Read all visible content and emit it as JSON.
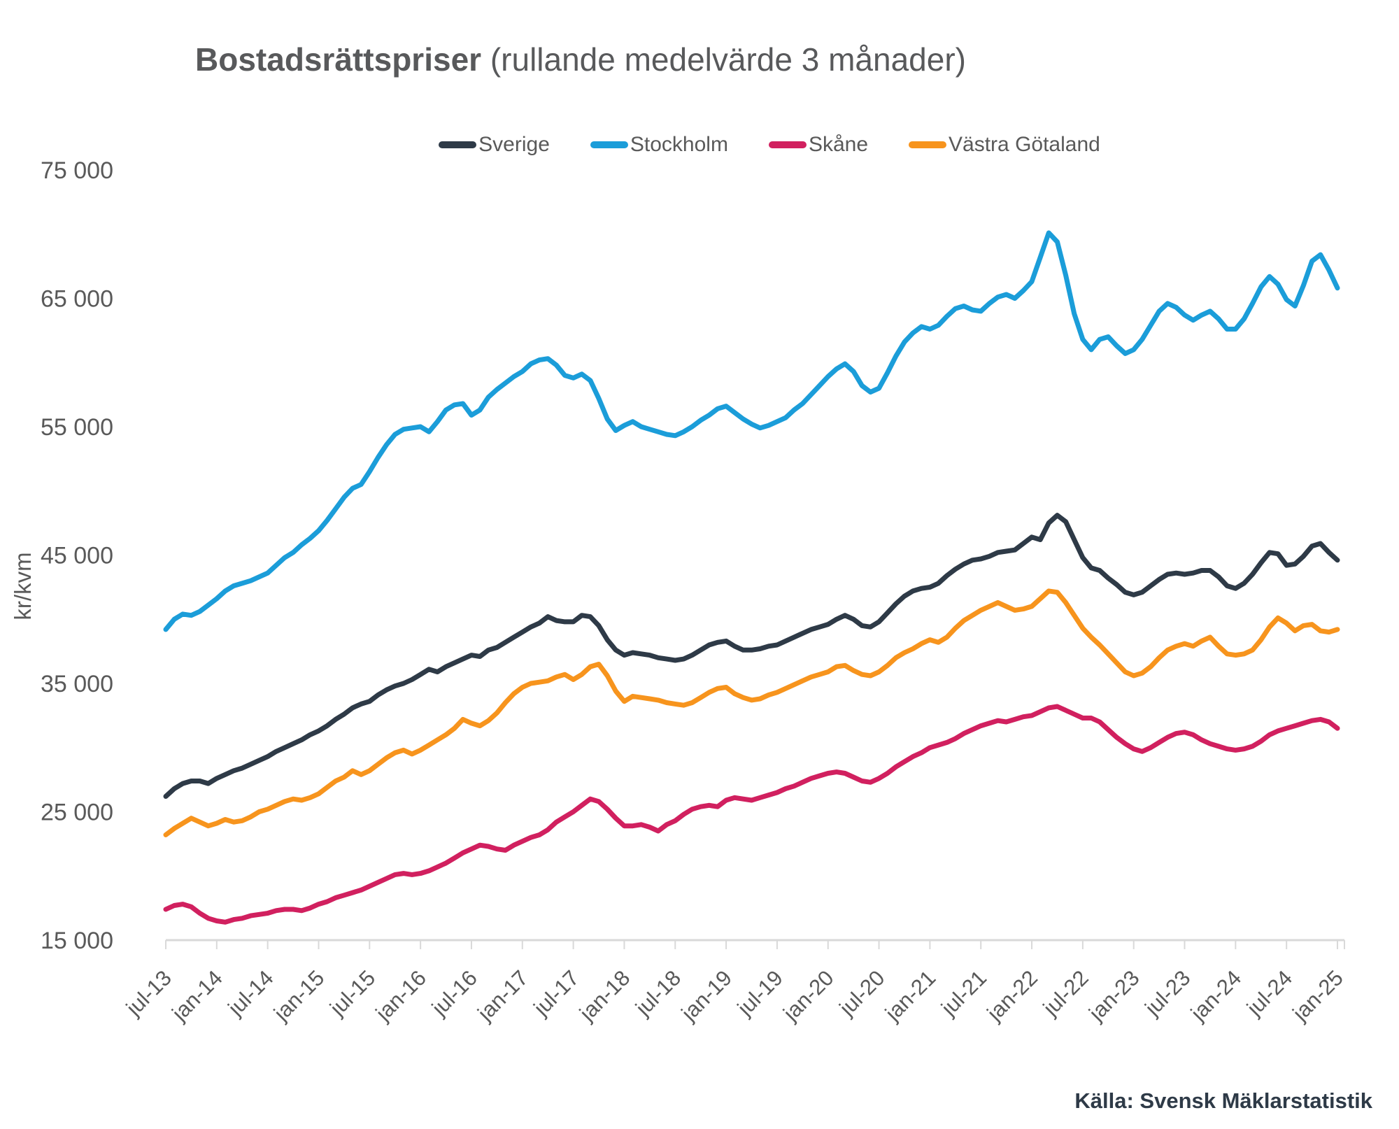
{
  "title": {
    "bold": "Bostadsrättspriser",
    "regular": " (rullande medelvärde 3 månader)"
  },
  "source": "Källa: Svensk Mäklarstatistik",
  "colors": {
    "sverige": "#2e3a47",
    "stockholm": "#1b9dd9",
    "skane": "#d1205f",
    "vastra_gotaland": "#f7941d",
    "axis_line": "#d9d9d9",
    "axis_text": "#595959",
    "title_text": "#58595b"
  },
  "chart_data": {
    "type": "line",
    "title": "Bostadsrättspriser (rullande medelvärde 3 månader)",
    "xlabel": "",
    "ylabel": "kr/kvm",
    "legend_position": "top",
    "grid": false,
    "frequency": "monthly",
    "x_start": "jul-13",
    "x_end": "jan-25",
    "points_per_series": 139,
    "ylim": [
      15000,
      75000
    ],
    "y_tick_values": [
      15000,
      25000,
      35000,
      45000,
      55000,
      65000,
      75000
    ],
    "y_tick_labels": [
      "15 000",
      "25 000",
      "35 000",
      "45 000",
      "55 000",
      "65 000",
      "75 000"
    ],
    "x_tick_every_months": 6,
    "x_tick_labels": [
      "jul-13",
      "jan-14",
      "jul-14",
      "jan-15",
      "jul-15",
      "jan-16",
      "jul-16",
      "jan-17",
      "jul-17",
      "jan-18",
      "jul-18",
      "jan-19",
      "jul-19",
      "jan-20",
      "jul-20",
      "jan-21",
      "jul-21",
      "jan-22",
      "jul-22",
      "jan-23",
      "jul-23",
      "jan-24",
      "jul-24",
      "jan-25"
    ],
    "series": [
      {
        "name": "Sverige",
        "color": "#2e3a47",
        "values": [
          26200,
          26800,
          27200,
          27400,
          27400,
          27200,
          27600,
          27900,
          28200,
          28400,
          28700,
          29000,
          29300,
          29700,
          30000,
          30300,
          30600,
          31000,
          31300,
          31700,
          32200,
          32600,
          33100,
          33400,
          33600,
          34100,
          34500,
          34800,
          35000,
          35300,
          35700,
          36100,
          35900,
          36300,
          36600,
          36900,
          37200,
          37100,
          37600,
          37800,
          38200,
          38600,
          39000,
          39400,
          39700,
          40200,
          39900,
          39800,
          39800,
          40300,
          40200,
          39500,
          38400,
          37600,
          37200,
          37400,
          37300,
          37200,
          37000,
          36900,
          36800,
          36900,
          37200,
          37600,
          38000,
          38200,
          38300,
          37900,
          37600,
          37600,
          37700,
          37900,
          38000,
          38300,
          38600,
          38900,
          39200,
          39400,
          39600,
          40000,
          40300,
          40000,
          39500,
          39400,
          39800,
          40500,
          41200,
          41800,
          42200,
          42400,
          42500,
          42800,
          43400,
          43900,
          44300,
          44600,
          44700,
          44900,
          45200,
          45300,
          45400,
          45900,
          46400,
          46200,
          47500,
          48100,
          47600,
          46200,
          44800,
          44000,
          43800,
          43200,
          42700,
          42100,
          41900,
          42100,
          42600,
          43100,
          43500,
          43600,
          43500,
          43600,
          43800,
          43800,
          43300,
          42600,
          42400,
          42800,
          43500,
          44400,
          45200,
          45100,
          44200,
          44300,
          44900,
          45700,
          45900,
          45200,
          44600
        ]
      },
      {
        "name": "Stockholm",
        "color": "#1b9dd9",
        "values": [
          39200,
          40000,
          40400,
          40300,
          40600,
          41100,
          41600,
          42200,
          42600,
          42800,
          43000,
          43300,
          43600,
          44200,
          44800,
          45200,
          45800,
          46300,
          46900,
          47700,
          48600,
          49500,
          50200,
          50500,
          51500,
          52600,
          53600,
          54400,
          54800,
          54900,
          55000,
          54600,
          55400,
          56300,
          56700,
          56800,
          55900,
          56300,
          57300,
          57900,
          58400,
          58900,
          59300,
          59900,
          60200,
          60300,
          59800,
          59000,
          58800,
          59100,
          58600,
          57200,
          55600,
          54700,
          55100,
          55400,
          55000,
          54800,
          54600,
          54400,
          54300,
          54600,
          55000,
          55500,
          55900,
          56400,
          56600,
          56100,
          55600,
          55200,
          54900,
          55100,
          55400,
          55700,
          56300,
          56800,
          57500,
          58200,
          58900,
          59500,
          59900,
          59300,
          58200,
          57700,
          58000,
          59200,
          60500,
          61600,
          62300,
          62800,
          62600,
          62900,
          63600,
          64200,
          64400,
          64100,
          64000,
          64600,
          65100,
          65300,
          65000,
          65600,
          66300,
          68200,
          70100,
          69400,
          66800,
          63800,
          61800,
          61000,
          61800,
          62000,
          61300,
          60700,
          61000,
          61800,
          62900,
          64000,
          64600,
          64300,
          63700,
          63300,
          63700,
          64000,
          63400,
          62600,
          62600,
          63400,
          64600,
          65900,
          66700,
          66100,
          64900,
          64400,
          66000,
          67900,
          68400,
          67200,
          65800
        ]
      },
      {
        "name": "Skåne",
        "color": "#d1205f",
        "values": [
          17400,
          17700,
          17800,
          17600,
          17100,
          16700,
          16500,
          16400,
          16600,
          16700,
          16900,
          17000,
          17100,
          17300,
          17400,
          17400,
          17300,
          17500,
          17800,
          18000,
          18300,
          18500,
          18700,
          18900,
          19200,
          19500,
          19800,
          20100,
          20200,
          20100,
          20200,
          20400,
          20700,
          21000,
          21400,
          21800,
          22100,
          22400,
          22300,
          22100,
          22000,
          22400,
          22700,
          23000,
          23200,
          23600,
          24200,
          24600,
          25000,
          25500,
          26000,
          25800,
          25200,
          24500,
          23900,
          23900,
          24000,
          23800,
          23500,
          24000,
          24300,
          24800,
          25200,
          25400,
          25500,
          25400,
          25900,
          26100,
          26000,
          25900,
          26100,
          26300,
          26500,
          26800,
          27000,
          27300,
          27600,
          27800,
          28000,
          28100,
          28000,
          27700,
          27400,
          27300,
          27600,
          28000,
          28500,
          28900,
          29300,
          29600,
          30000,
          30200,
          30400,
          30700,
          31100,
          31400,
          31700,
          31900,
          32100,
          32000,
          32200,
          32400,
          32500,
          32800,
          33100,
          33200,
          32900,
          32600,
          32300,
          32300,
          32000,
          31400,
          30800,
          30300,
          29900,
          29700,
          30000,
          30400,
          30800,
          31100,
          31200,
          31000,
          30600,
          30300,
          30100,
          29900,
          29800,
          29900,
          30100,
          30500,
          31000,
          31300,
          31500,
          31700,
          31900,
          32100,
          32200,
          32000,
          31500
        ]
      },
      {
        "name": "Västra Götaland",
        "color": "#f7941d",
        "values": [
          23200,
          23700,
          24100,
          24500,
          24200,
          23900,
          24100,
          24400,
          24200,
          24300,
          24600,
          25000,
          25200,
          25500,
          25800,
          26000,
          25900,
          26100,
          26400,
          26900,
          27400,
          27700,
          28200,
          27900,
          28200,
          28700,
          29200,
          29600,
          29800,
          29500,
          29800,
          30200,
          30600,
          31000,
          31500,
          32200,
          31900,
          31700,
          32100,
          32700,
          33500,
          34200,
          34700,
          35000,
          35100,
          35200,
          35500,
          35700,
          35300,
          35700,
          36300,
          36500,
          35600,
          34400,
          33600,
          34000,
          33900,
          33800,
          33700,
          33500,
          33400,
          33300,
          33500,
          33900,
          34300,
          34600,
          34700,
          34200,
          33900,
          33700,
          33800,
          34100,
          34300,
          34600,
          34900,
          35200,
          35500,
          35700,
          35900,
          36300,
          36400,
          36000,
          35700,
          35600,
          35900,
          36400,
          37000,
          37400,
          37700,
          38100,
          38400,
          38200,
          38600,
          39300,
          39900,
          40300,
          40700,
          41000,
          41300,
          41000,
          40700,
          40800,
          41000,
          41600,
          42200,
          42100,
          41300,
          40300,
          39300,
          38600,
          38000,
          37300,
          36600,
          35900,
          35600,
          35800,
          36300,
          37000,
          37600,
          37900,
          38100,
          37900,
          38300,
          38600,
          37900,
          37300,
          37200,
          37300,
          37600,
          38400,
          39400,
          40100,
          39700,
          39100,
          39500,
          39600,
          39100,
          39000,
          39200
        ]
      }
    ]
  }
}
